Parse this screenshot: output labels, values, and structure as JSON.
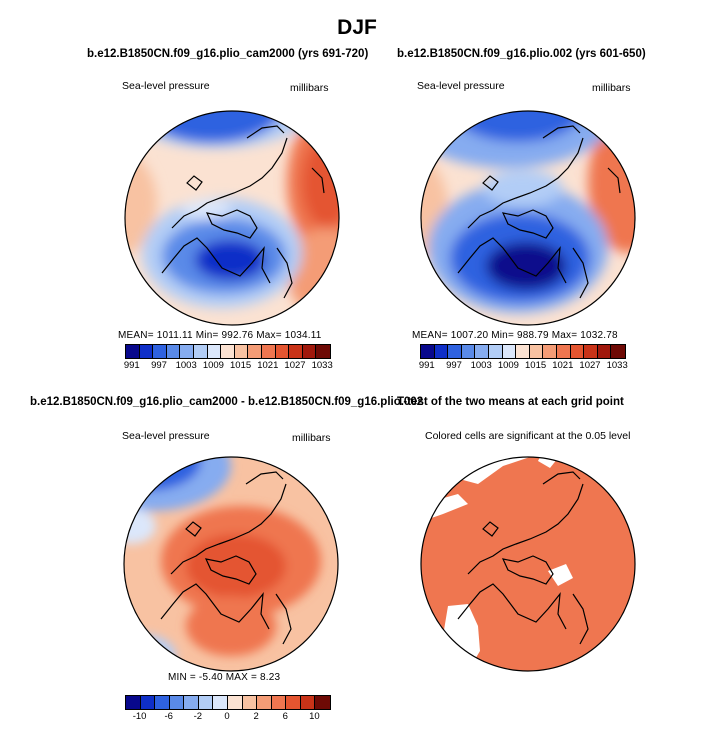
{
  "figure_title": "DJF",
  "panels": [
    {
      "title": "b.e12.B1850CN.f09_g16.plio_cam2000 (yrs 691-720)",
      "left_label": "Sea-level pressure",
      "right_label": "millibars",
      "stats": "MEAN= 1011.11   Min= 992.76   Max= 1034.11"
    },
    {
      "title": "b.e12.B1850CN.f09_g16.plio.002 (yrs 601-650)",
      "left_label": "Sea-level pressure",
      "right_label": "millibars",
      "stats": "MEAN= 1007.20   Min= 988.79   Max= 1032.78"
    },
    {
      "title": "b.e12.B1850CN.f09_g16.plio_cam2000 - b.e12.B1850CN.f09_g16.plio.002",
      "left_label": "Sea-level pressure",
      "right_label": "millibars",
      "stats": "MIN =   -5.40  MAX =    8.23"
    },
    {
      "title": "T-test of the two means at each grid point",
      "label": "Colored cells are significant at the 0.05 level"
    }
  ],
  "colorbar_top": {
    "colors": [
      "#08088c",
      "#0f2fc8",
      "#2f62e0",
      "#5a8ae8",
      "#86acf0",
      "#b2cdf6",
      "#dbe7fb",
      "#fbe2d2",
      "#f8c2a2",
      "#f49c76",
      "#ef7650",
      "#e45530",
      "#c93318",
      "#a0180c",
      "#6e0a05"
    ],
    "tick_labels": [
      "991",
      "997",
      "1003",
      "1009",
      "1015",
      "1021",
      "1027",
      "1033"
    ]
  },
  "colorbar_diff": {
    "colors": [
      "#08088c",
      "#0f2fc8",
      "#2f62e0",
      "#5a8ae8",
      "#86acf0",
      "#b2cdf6",
      "#dbe7fb",
      "#fbe2d2",
      "#f8c2a2",
      "#f49c76",
      "#ef7650",
      "#e45530",
      "#c93318",
      "#6e0a05"
    ],
    "tick_labels": [
      "-10",
      "-6",
      "-2",
      "0",
      "2",
      "6",
      "10"
    ]
  },
  "chart_data": [
    {
      "type": "heatmap",
      "title": "b.e12.B1850CN.f09_g16.plio_cam2000 (yrs 691-720)",
      "variable": "Sea-level pressure",
      "units": "millibars",
      "projection": "polar stereographic (north)",
      "mean": 1011.11,
      "min": 992.76,
      "max": 1034.11,
      "levels": [
        991,
        994,
        997,
        1000,
        1003,
        1006,
        1009,
        1012,
        1015,
        1018,
        1021,
        1024,
        1027,
        1030,
        1033
      ]
    },
    {
      "type": "heatmap",
      "title": "b.e12.B1850CN.f09_g16.plio.002 (yrs 601-650)",
      "variable": "Sea-level pressure",
      "units": "millibars",
      "projection": "polar stereographic (north)",
      "mean": 1007.2,
      "min": 988.79,
      "max": 1032.78,
      "levels": [
        991,
        994,
        997,
        1000,
        1003,
        1006,
        1009,
        1012,
        1015,
        1018,
        1021,
        1024,
        1027,
        1030,
        1033
      ]
    },
    {
      "type": "heatmap",
      "title": "b.e12.B1850CN.f09_g16.plio_cam2000 - b.e12.B1850CN.f09_g16.plio.002",
      "variable": "Sea-level pressure",
      "units": "millibars",
      "min": -5.4,
      "max": 8.23,
      "levels": [
        -12,
        -10,
        -8,
        -6,
        -4,
        -2,
        0,
        2,
        4,
        6,
        8,
        10,
        12
      ]
    },
    {
      "type": "heatmap",
      "title": "T-test of the two means at each grid point",
      "note": "Colored cells are significant at the 0.05 level",
      "significance_level": 0.05
    }
  ]
}
